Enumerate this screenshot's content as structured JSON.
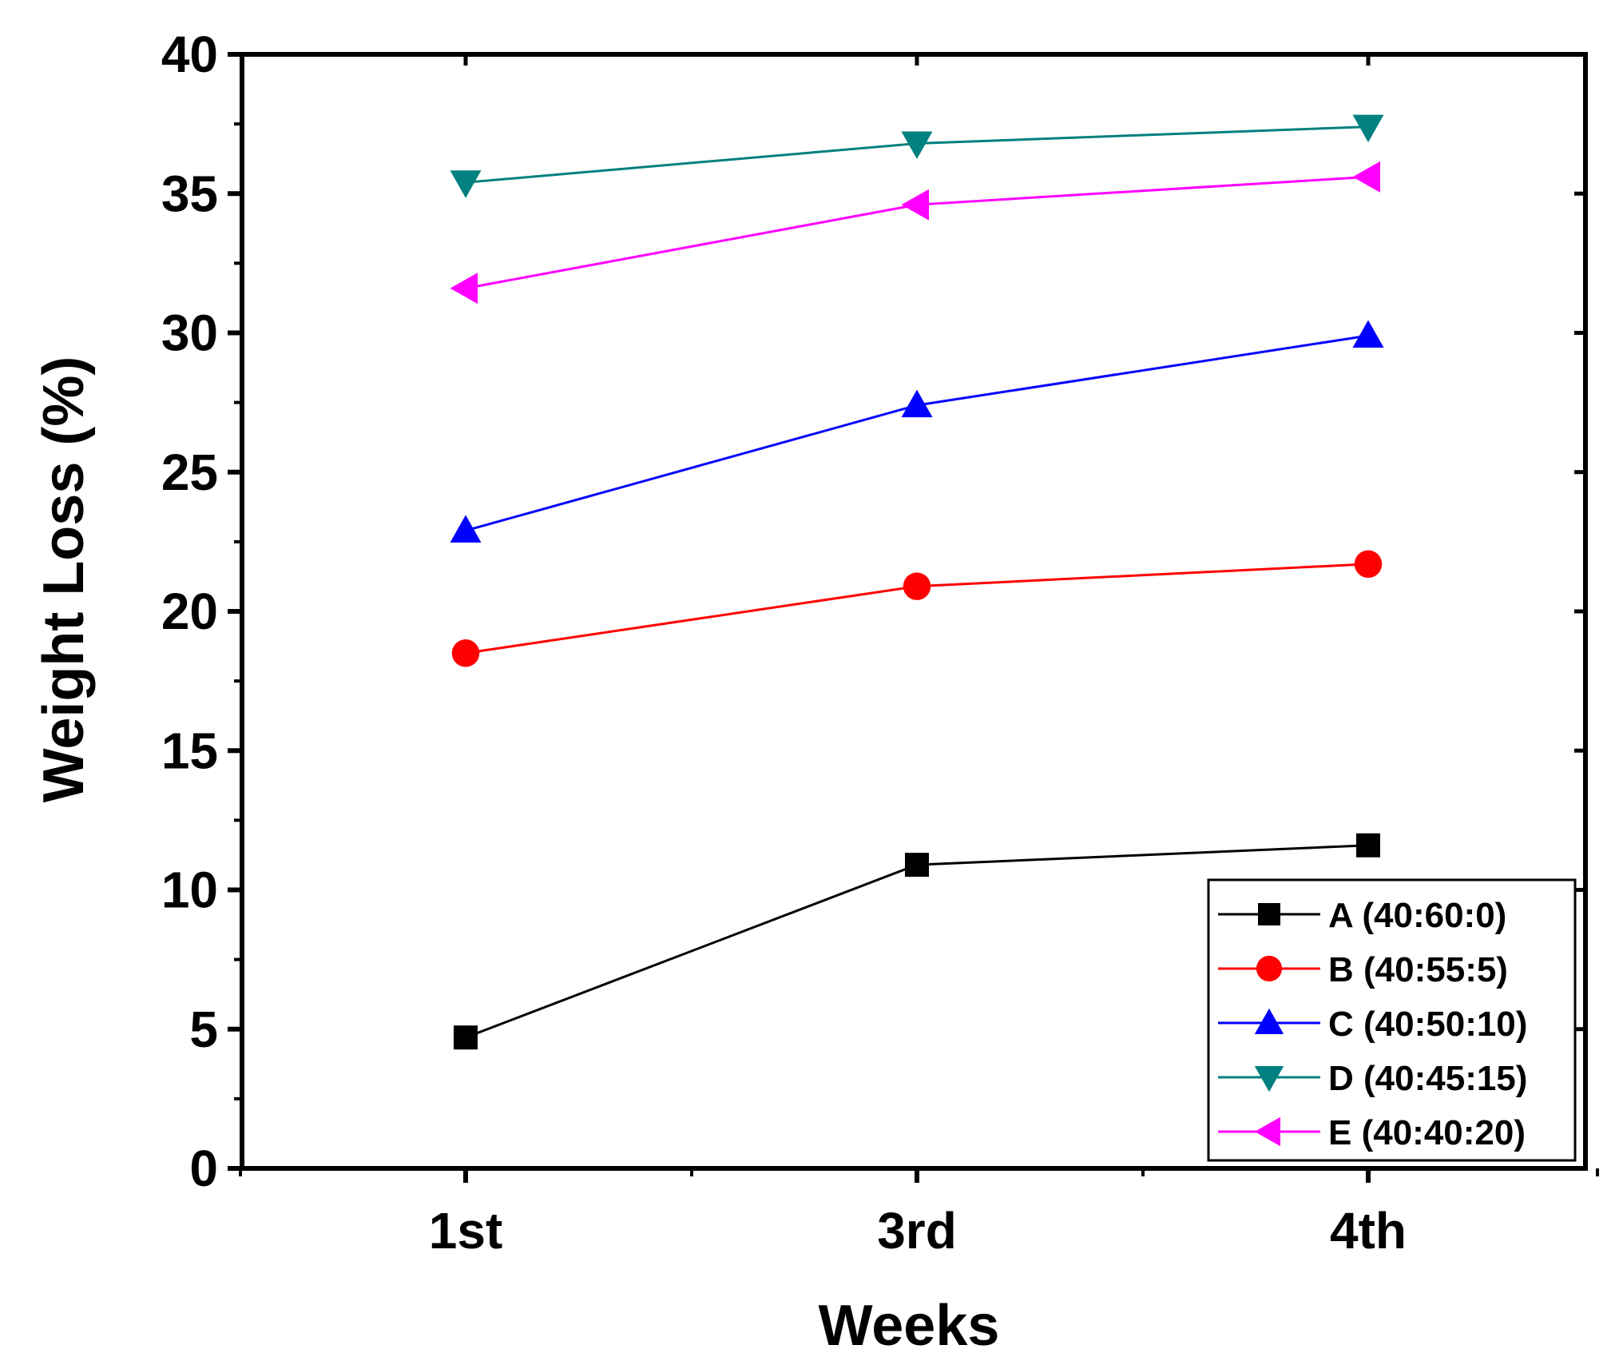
{
  "chart_data": {
    "type": "line",
    "title": "",
    "xlabel": "Weeks",
    "ylabel": "Weight Loss (%)",
    "categories": [
      "1st",
      "3rd",
      "4th"
    ],
    "ylim": [
      0,
      40
    ],
    "yticks": [
      0,
      5,
      10,
      15,
      20,
      25,
      30,
      35,
      40
    ],
    "grid": false,
    "legend_position": "bottom-right",
    "series": [
      {
        "name": "A (40:60:0)",
        "color": "#000000",
        "marker": "square",
        "values": [
          4.7,
          10.9,
          11.6
        ]
      },
      {
        "name": "B (40:55:5)",
        "color": "#ff0000",
        "marker": "circle",
        "values": [
          18.5,
          20.9,
          21.7
        ]
      },
      {
        "name": "C (40:50:10)",
        "color": "#0000ff",
        "marker": "triangle-up",
        "values": [
          22.9,
          27.4,
          29.9
        ]
      },
      {
        "name": "D (40:45:15)",
        "color": "#008080",
        "marker": "triangle-down",
        "values": [
          35.4,
          36.8,
          37.4
        ]
      },
      {
        "name": "E (40:40:20)",
        "color": "#ff00ff",
        "marker": "triangle-left",
        "values": [
          31.6,
          34.6,
          35.6
        ]
      }
    ]
  }
}
